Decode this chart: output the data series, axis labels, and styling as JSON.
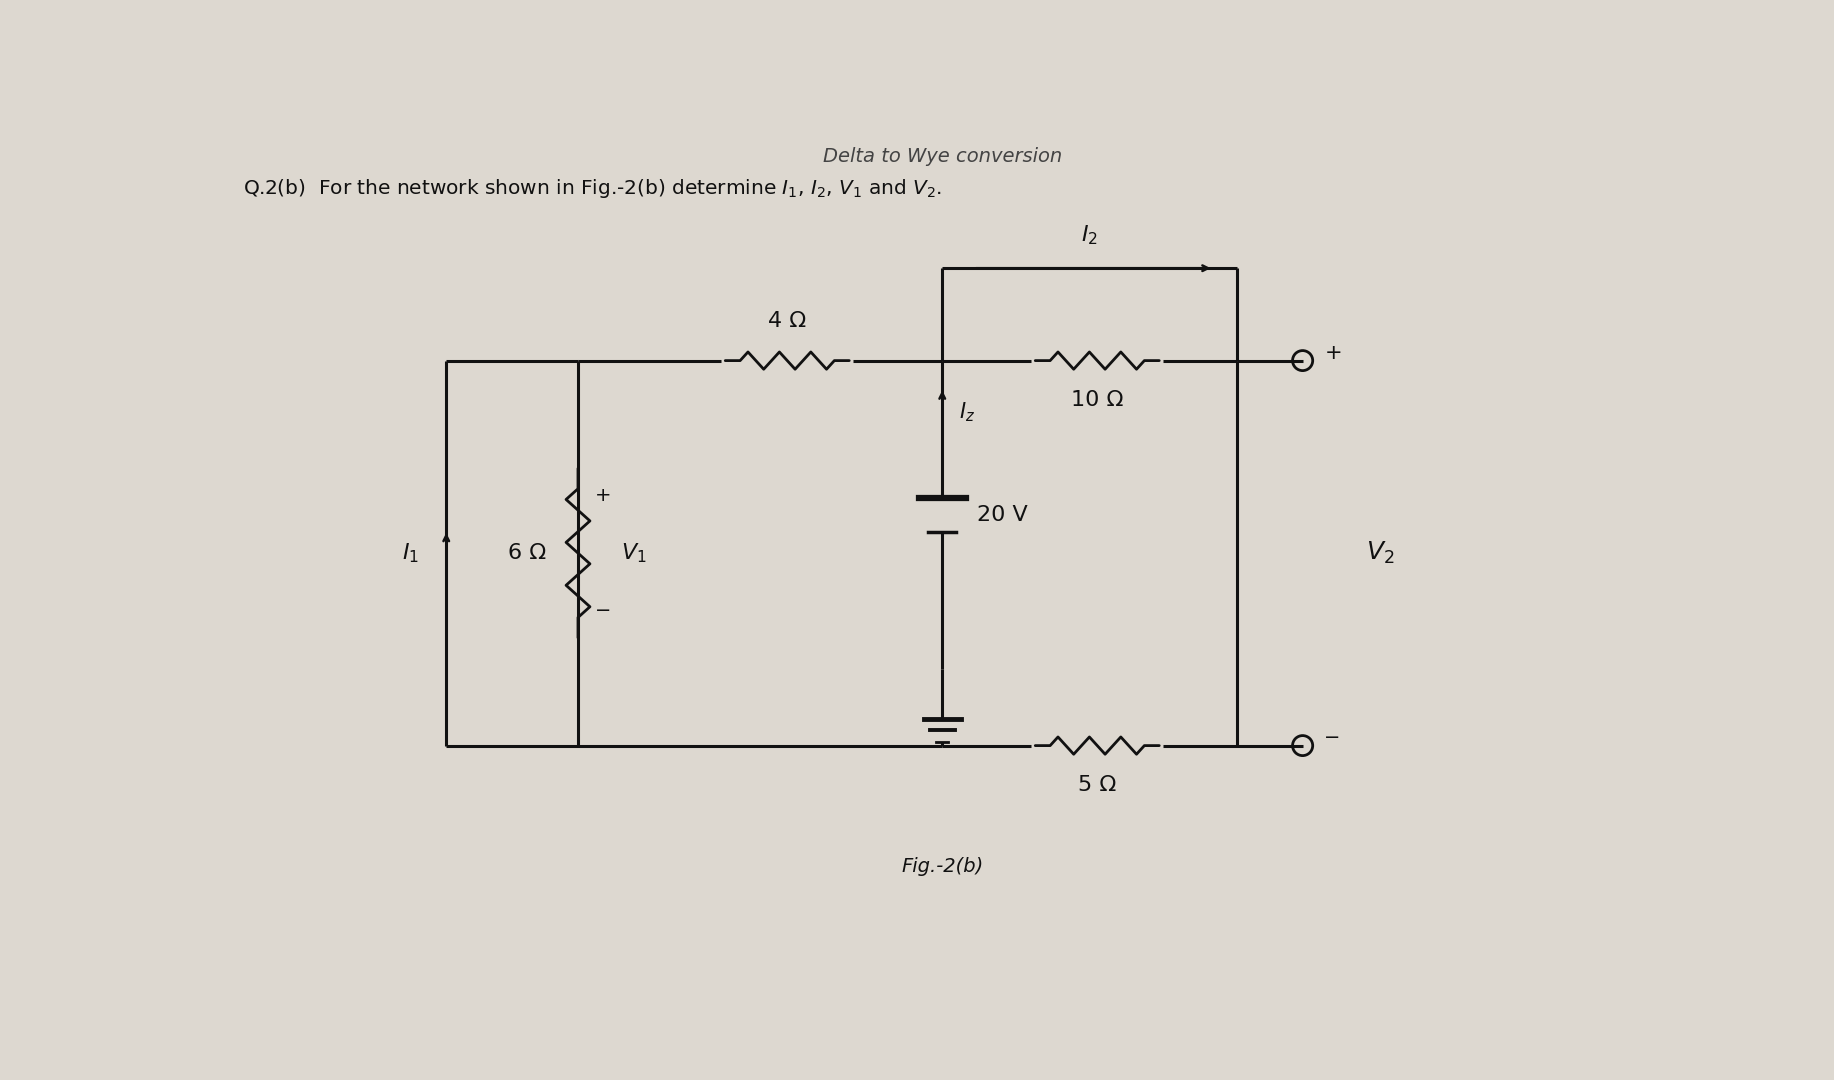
{
  "bg_color": "#ddd8d0",
  "line_color": "#111111",
  "title_line1": "Delta to Wye conversion",
  "title_line2": "Q.2(b)  For the network shown in Fig.-2(b) determine $I_1$, $I_2$, $V_1$ and $V_2$.",
  "fig_label": "Fig.-2(b)",
  "label_4ohm": "4 Ω",
  "label_6ohm": "6 Ω",
  "label_10ohm": "10 Ω",
  "label_5ohm": "5 Ω",
  "label_20v": "20 V",
  "label_I1": "$I_1$",
  "label_I2": "$I_2$",
  "label_Iz": "$I_z$",
  "label_V1": "$V_1$",
  "label_V2": "$V_2$",
  "label_plus": "+",
  "label_minus": "−"
}
